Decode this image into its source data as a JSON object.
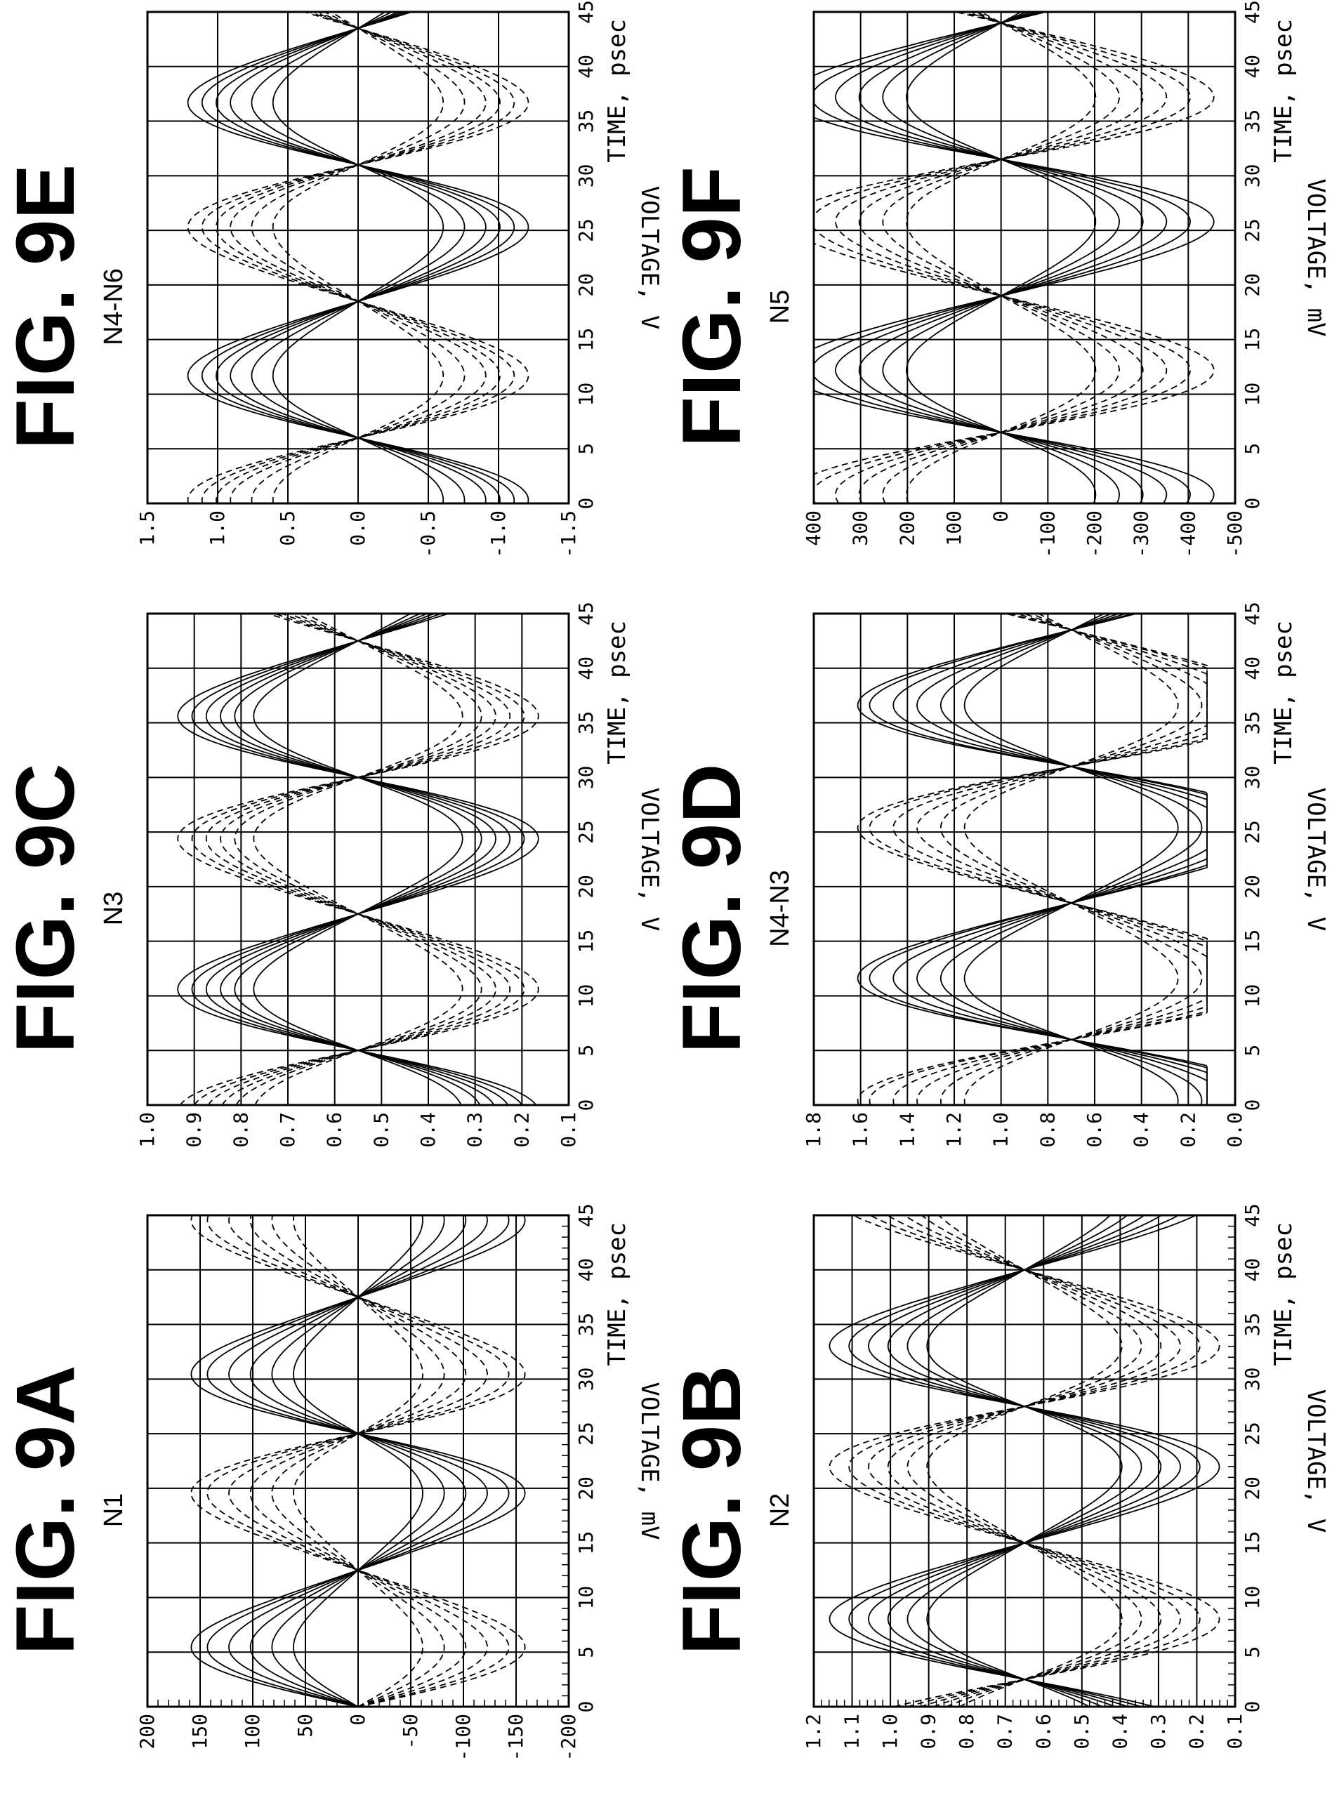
{
  "chart_data": [
    {
      "id": "9A",
      "title": "FIG. 9A",
      "subtitle": "N1",
      "type": "line",
      "xlabel": "TIME, psec",
      "ylabel": "VOLTAGE, mV",
      "xlim": [
        0,
        45
      ],
      "ylim": [
        -200,
        200
      ],
      "xticks": [
        "0",
        "5",
        "10",
        "15",
        "20",
        "25",
        "30",
        "35",
        "40",
        "45"
      ],
      "yticks": [
        "200",
        "150",
        "100",
        "50",
        "0",
        "-50",
        "-100",
        "-150",
        "-200"
      ],
      "grid": true,
      "minor_ticks": true,
      "waveform": {
        "period": 25,
        "phase": 0,
        "offset": 0,
        "amplitudes": [
          60,
          80,
          100,
          120,
          140,
          155
        ],
        "skew": 0.9
      }
    },
    {
      "id": "9B",
      "title": "FIG. 9B",
      "subtitle": "N2",
      "type": "line",
      "xlabel": "TIME, psec",
      "ylabel": "VOLTAGE, V",
      "xlim": [
        0,
        45
      ],
      "ylim": [
        0.1,
        1.2
      ],
      "xticks": [
        "0",
        "5",
        "10",
        "15",
        "20",
        "25",
        "30",
        "35",
        "40",
        "45"
      ],
      "yticks": [
        "1.2",
        "1.1",
        "1.0",
        "0.9",
        "0.8",
        "0.7",
        "0.6",
        "0.5",
        "0.4",
        "0.3",
        "0.2",
        "0.1"
      ],
      "grid": true,
      "minor_ticks": true,
      "waveform": {
        "period": 25,
        "phase": 2.5,
        "offset": 0.65,
        "amplitudes": [
          0.25,
          0.3,
          0.35,
          0.4,
          0.45,
          0.5
        ],
        "skew": 0.8
      }
    },
    {
      "id": "9C",
      "title": "FIG. 9C",
      "subtitle": "N3",
      "type": "line",
      "xlabel": "TIME, psec",
      "ylabel": "VOLTAGE, V",
      "xlim": [
        0,
        45
      ],
      "ylim": [
        0.1,
        1.0
      ],
      "xticks": [
        "0",
        "5",
        "10",
        "15",
        "20",
        "25",
        "30",
        "35",
        "40",
        "45"
      ],
      "yticks": [
        "1.0",
        "0.9",
        "0.8",
        "0.7",
        "0.6",
        "0.5",
        "0.4",
        "0.3",
        "0.2",
        "0.1"
      ],
      "grid": true,
      "minor_ticks": false,
      "waveform": {
        "period": 25,
        "phase": 5,
        "offset": 0.55,
        "amplitudes": [
          0.22,
          0.26,
          0.29,
          0.32,
          0.35,
          0.38
        ],
        "skew": 0.7
      }
    },
    {
      "id": "9D",
      "title": "FIG. 9D",
      "subtitle": "N4-N3",
      "type": "line",
      "xlabel": "TIME, psec",
      "ylabel": "VOLTAGE, V",
      "xlim": [
        0,
        45
      ],
      "ylim": [
        0.0,
        1.8
      ],
      "xticks": [
        "0",
        "5",
        "10",
        "15",
        "20",
        "25",
        "30",
        "35",
        "40",
        "45"
      ],
      "yticks": [
        "1.8",
        "1.6",
        "1.4",
        "1.2",
        "1.0",
        "0.8",
        "0.6",
        "0.4",
        "0.2",
        "0.0"
      ],
      "grid": true,
      "minor_ticks": false,
      "waveform": {
        "period": 25,
        "phase": 6,
        "offset": 0.7,
        "amplitudes": [
          0.45,
          0.55,
          0.65,
          0.75,
          0.85,
          0.9
        ],
        "skew": 0.7,
        "clip": [
          0.12,
          1.62
        ]
      }
    },
    {
      "id": "9E",
      "title": "FIG. 9E",
      "subtitle": "N4-N6",
      "type": "line",
      "xlabel": "TIME, psec",
      "ylabel": "VOLTAGE, V",
      "xlim": [
        0,
        45
      ],
      "ylim": [
        -1.5,
        1.5
      ],
      "xticks": [
        "0",
        "5",
        "10",
        "15",
        "20",
        "25",
        "30",
        "35",
        "40",
        "45"
      ],
      "yticks": [
        "1.5",
        "1.0",
        "0.5",
        "0.0",
        "-0.5",
        "-1.0",
        "-1.5"
      ],
      "grid": true,
      "minor_ticks": false,
      "waveform": {
        "period": 25,
        "phase": 6,
        "offset": 0,
        "amplitudes": [
          0.6,
          0.75,
          0.9,
          1.0,
          1.1,
          1.2
        ],
        "skew": 0.6
      }
    },
    {
      "id": "9F",
      "title": "FIG. 9F",
      "subtitle": "N5",
      "type": "line",
      "xlabel": "TIME, psec",
      "ylabel": "VOLTAGE, mV",
      "xlim": [
        0,
        45
      ],
      "ylim": [
        -500,
        400
      ],
      "xticks": [
        "0",
        "5",
        "10",
        "15",
        "20",
        "25",
        "30",
        "35",
        "40",
        "45"
      ],
      "yticks": [
        "400",
        "300",
        "200",
        "100",
        "0",
        "-100",
        "-200",
        "-300",
        "-400",
        "-500"
      ],
      "grid": true,
      "minor_ticks": false,
      "waveform": {
        "period": 25,
        "phase": 6.5,
        "offset": 0,
        "amplitudes": [
          200,
          250,
          300,
          350,
          400,
          450
        ],
        "skew": 0.6
      }
    }
  ]
}
